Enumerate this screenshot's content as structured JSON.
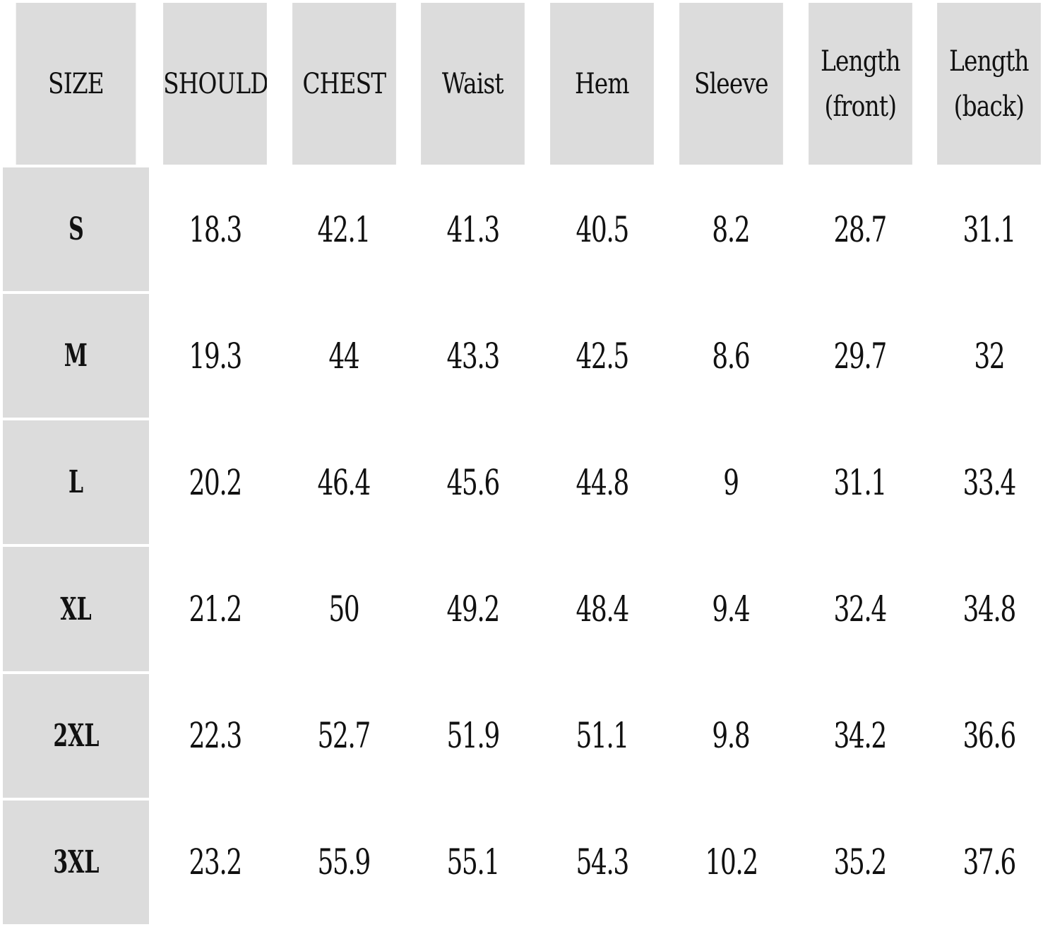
{
  "table": {
    "headers": [
      [
        "SIZE"
      ],
      [
        "SHOULDER"
      ],
      [
        "CHEST"
      ],
      [
        "Waist"
      ],
      [
        "Hem"
      ],
      [
        "Sleeve"
      ],
      [
        "Length",
        "(front)"
      ],
      [
        "Length",
        "(back)"
      ]
    ],
    "rows": [
      {
        "size": "S",
        "values": [
          "18.3",
          "42.1",
          "41.3",
          "40.5",
          "8.2",
          "28.7",
          "31.1"
        ]
      },
      {
        "size": "M",
        "values": [
          "19.3",
          "44",
          "43.3",
          "42.5",
          "8.6",
          "29.7",
          "32"
        ]
      },
      {
        "size": "L",
        "values": [
          "20.2",
          "46.4",
          "45.6",
          "44.8",
          "9",
          "31.1",
          "33.4"
        ]
      },
      {
        "size": "XL",
        "values": [
          "21.2",
          "50",
          "49.2",
          "48.4",
          "9.4",
          "32.4",
          "34.8"
        ]
      },
      {
        "size": "2XL",
        "values": [
          "22.3",
          "52.7",
          "51.9",
          "51.1",
          "9.8",
          "34.2",
          "36.6"
        ]
      },
      {
        "size": "3XL",
        "values": [
          "23.2",
          "55.9",
          "55.1",
          "54.3",
          "10.2",
          "35.2",
          "37.6"
        ]
      }
    ],
    "colors": {
      "header_background": "#dcdcdc",
      "cell_background": "#ffffff",
      "border": "#ffffff",
      "text": "#111111"
    }
  }
}
